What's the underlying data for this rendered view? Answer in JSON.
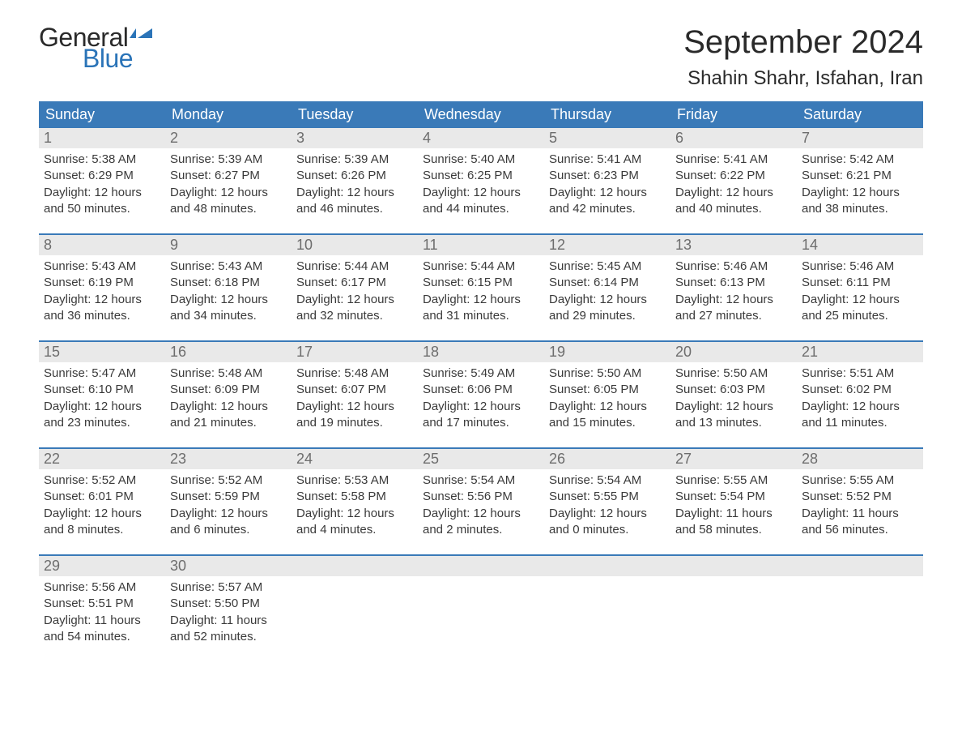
{
  "brand": {
    "part1": "General",
    "part2": "Blue",
    "part1_color": "#2a2a2a",
    "part2_color": "#2b74b8",
    "flag_color": "#2b74b8"
  },
  "header": {
    "title": "September 2024",
    "location": "Shahin Shahr, Isfahan, Iran"
  },
  "colors": {
    "header_bg": "#3a7ab8",
    "daynum_bg": "#e9e9e9",
    "text": "#3a3a3a",
    "sep": "#3a7ab8",
    "bg": "#ffffff"
  },
  "daysOfWeek": [
    "Sunday",
    "Monday",
    "Tuesday",
    "Wednesday",
    "Thursday",
    "Friday",
    "Saturday"
  ],
  "weeks": [
    [
      {
        "n": "1",
        "sunrise": "5:38 AM",
        "sunset": "6:29 PM",
        "dl1": "12 hours",
        "dl2": "and 50 minutes."
      },
      {
        "n": "2",
        "sunrise": "5:39 AM",
        "sunset": "6:27 PM",
        "dl1": "12 hours",
        "dl2": "and 48 minutes."
      },
      {
        "n": "3",
        "sunrise": "5:39 AM",
        "sunset": "6:26 PM",
        "dl1": "12 hours",
        "dl2": "and 46 minutes."
      },
      {
        "n": "4",
        "sunrise": "5:40 AM",
        "sunset": "6:25 PM",
        "dl1": "12 hours",
        "dl2": "and 44 minutes."
      },
      {
        "n": "5",
        "sunrise": "5:41 AM",
        "sunset": "6:23 PM",
        "dl1": "12 hours",
        "dl2": "and 42 minutes."
      },
      {
        "n": "6",
        "sunrise": "5:41 AM",
        "sunset": "6:22 PM",
        "dl1": "12 hours",
        "dl2": "and 40 minutes."
      },
      {
        "n": "7",
        "sunrise": "5:42 AM",
        "sunset": "6:21 PM",
        "dl1": "12 hours",
        "dl2": "and 38 minutes."
      }
    ],
    [
      {
        "n": "8",
        "sunrise": "5:43 AM",
        "sunset": "6:19 PM",
        "dl1": "12 hours",
        "dl2": "and 36 minutes."
      },
      {
        "n": "9",
        "sunrise": "5:43 AM",
        "sunset": "6:18 PM",
        "dl1": "12 hours",
        "dl2": "and 34 minutes."
      },
      {
        "n": "10",
        "sunrise": "5:44 AM",
        "sunset": "6:17 PM",
        "dl1": "12 hours",
        "dl2": "and 32 minutes."
      },
      {
        "n": "11",
        "sunrise": "5:44 AM",
        "sunset": "6:15 PM",
        "dl1": "12 hours",
        "dl2": "and 31 minutes."
      },
      {
        "n": "12",
        "sunrise": "5:45 AM",
        "sunset": "6:14 PM",
        "dl1": "12 hours",
        "dl2": "and 29 minutes."
      },
      {
        "n": "13",
        "sunrise": "5:46 AM",
        "sunset": "6:13 PM",
        "dl1": "12 hours",
        "dl2": "and 27 minutes."
      },
      {
        "n": "14",
        "sunrise": "5:46 AM",
        "sunset": "6:11 PM",
        "dl1": "12 hours",
        "dl2": "and 25 minutes."
      }
    ],
    [
      {
        "n": "15",
        "sunrise": "5:47 AM",
        "sunset": "6:10 PM",
        "dl1": "12 hours",
        "dl2": "and 23 minutes."
      },
      {
        "n": "16",
        "sunrise": "5:48 AM",
        "sunset": "6:09 PM",
        "dl1": "12 hours",
        "dl2": "and 21 minutes."
      },
      {
        "n": "17",
        "sunrise": "5:48 AM",
        "sunset": "6:07 PM",
        "dl1": "12 hours",
        "dl2": "and 19 minutes."
      },
      {
        "n": "18",
        "sunrise": "5:49 AM",
        "sunset": "6:06 PM",
        "dl1": "12 hours",
        "dl2": "and 17 minutes."
      },
      {
        "n": "19",
        "sunrise": "5:50 AM",
        "sunset": "6:05 PM",
        "dl1": "12 hours",
        "dl2": "and 15 minutes."
      },
      {
        "n": "20",
        "sunrise": "5:50 AM",
        "sunset": "6:03 PM",
        "dl1": "12 hours",
        "dl2": "and 13 minutes."
      },
      {
        "n": "21",
        "sunrise": "5:51 AM",
        "sunset": "6:02 PM",
        "dl1": "12 hours",
        "dl2": "and 11 minutes."
      }
    ],
    [
      {
        "n": "22",
        "sunrise": "5:52 AM",
        "sunset": "6:01 PM",
        "dl1": "12 hours",
        "dl2": "and 8 minutes."
      },
      {
        "n": "23",
        "sunrise": "5:52 AM",
        "sunset": "5:59 PM",
        "dl1": "12 hours",
        "dl2": "and 6 minutes."
      },
      {
        "n": "24",
        "sunrise": "5:53 AM",
        "sunset": "5:58 PM",
        "dl1": "12 hours",
        "dl2": "and 4 minutes."
      },
      {
        "n": "25",
        "sunrise": "5:54 AM",
        "sunset": "5:56 PM",
        "dl1": "12 hours",
        "dl2": "and 2 minutes."
      },
      {
        "n": "26",
        "sunrise": "5:54 AM",
        "sunset": "5:55 PM",
        "dl1": "12 hours",
        "dl2": "and 0 minutes."
      },
      {
        "n": "27",
        "sunrise": "5:55 AM",
        "sunset": "5:54 PM",
        "dl1": "11 hours",
        "dl2": "and 58 minutes."
      },
      {
        "n": "28",
        "sunrise": "5:55 AM",
        "sunset": "5:52 PM",
        "dl1": "11 hours",
        "dl2": "and 56 minutes."
      }
    ],
    [
      {
        "n": "29",
        "sunrise": "5:56 AM",
        "sunset": "5:51 PM",
        "dl1": "11 hours",
        "dl2": "and 54 minutes."
      },
      {
        "n": "30",
        "sunrise": "5:57 AM",
        "sunset": "5:50 PM",
        "dl1": "11 hours",
        "dl2": "and 52 minutes."
      },
      null,
      null,
      null,
      null,
      null
    ]
  ],
  "labels": {
    "sunrise": "Sunrise: ",
    "sunset": "Sunset: ",
    "daylight": "Daylight: "
  }
}
